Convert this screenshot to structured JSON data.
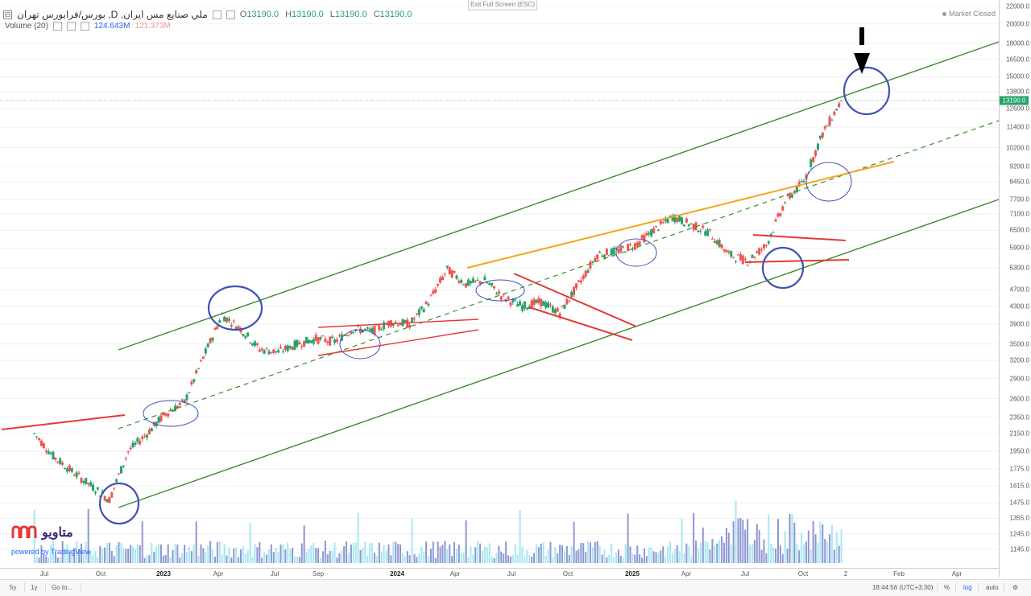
{
  "header": {
    "collapse_symbol": "⊟",
    "symbol_title": "بورس/فرابورس تهران ,D ,ملي صنايع مس ايران",
    "ohlc": [
      {
        "key": "O",
        "value": "13190.0"
      },
      {
        "key": "H",
        "value": "13190.0"
      },
      {
        "key": "L",
        "value": "13190.0"
      },
      {
        "key": "C",
        "value": "13190.0"
      }
    ],
    "volume_label": "Volume (20)",
    "volume_value": "124.643M",
    "volume_ma": "121.373M"
  },
  "exit_fullscreen": "Exit Full Screen (ESC)",
  "market_status": "Market Closed",
  "last_price": "13190.0",
  "branding": {
    "logo_text": "متاویو",
    "powered": "powered by TradingView"
  },
  "toolbar": {
    "ranges": [
      "5y",
      "1y"
    ],
    "goto": "Go to...",
    "clock": "18:44:56 (UTC+3:30)",
    "percent": "%",
    "log": "log",
    "auto": "auto"
  },
  "colors": {
    "up": "#26a269",
    "down": "#ef5350",
    "channel": "#3c8c2c",
    "resistance": "#f5a623",
    "pattern": "#e53935",
    "highlight": "#3f51b5",
    "vol_up": "#5c6bc0",
    "vol_up_light": "#80deea"
  },
  "chart_data": {
    "type": "candlestick",
    "symbol": "ملي صنايع مس ايران",
    "interval": "D",
    "scale": "log",
    "ylim": [
      1100,
      22000
    ],
    "price_ticks": [
      22000,
      20000,
      18000,
      16500,
      15000,
      13800,
      12600,
      11400,
      10200,
      9200,
      8450,
      7700,
      7100,
      6500,
      5900,
      5300,
      4700,
      4300,
      3900,
      3500,
      3200,
      2900,
      2600,
      2350,
      2150,
      1950,
      1775,
      1615,
      1475,
      1355,
      1245,
      1145
    ],
    "time_ticks": [
      "Jul",
      "Oct",
      "2023",
      "Apr",
      "Jul",
      "Sep",
      "2024",
      "Apr",
      "Jul",
      "Oct",
      "2025",
      "Apr",
      "Jul",
      "Oct",
      "2",
      "Feb",
      "Apr"
    ],
    "series": [
      {
        "kind": "price",
        "points": [
          [
            "Jun 2022",
            2150
          ],
          [
            "Jul 2022",
            1900
          ],
          [
            "Aug 2022",
            1750
          ],
          [
            "Sep 2022",
            1620
          ],
          [
            "Oct 2022",
            1500
          ],
          [
            "Nov 2022",
            1950
          ],
          [
            "Dec 2022",
            2150
          ],
          [
            "Jan 2023",
            2400
          ],
          [
            "Feb 2023",
            2550
          ],
          [
            "Mar 2023",
            3250
          ],
          [
            "Apr 2023",
            4100
          ],
          [
            "May 2023",
            3800
          ],
          [
            "Jun 2023",
            3400
          ],
          [
            "Jul 2023",
            3350
          ],
          [
            "Aug 2023",
            3500
          ],
          [
            "Sep 2023",
            3600
          ],
          [
            "Oct 2023",
            3550
          ],
          [
            "Nov 2023",
            3800
          ],
          [
            "Dec 2023",
            3750
          ],
          [
            "Jan 2024",
            3950
          ],
          [
            "Feb 2024",
            3900
          ],
          [
            "Mar 2024",
            4400
          ],
          [
            "Apr 2024",
            5250
          ],
          [
            "May 2024",
            4850
          ],
          [
            "Jun 2024",
            4950
          ],
          [
            "Jul 2024",
            4500
          ],
          [
            "Aug 2024",
            4300
          ],
          [
            "Sep 2024",
            4400
          ],
          [
            "Oct 2024",
            4150
          ],
          [
            "Nov 2024",
            4850
          ],
          [
            "Dec 2024",
            5700
          ],
          [
            "Jan 2025",
            5800
          ],
          [
            "Feb 2025",
            6000
          ],
          [
            "Mar 2025",
            6500
          ],
          [
            "Apr 2025",
            7000
          ],
          [
            "May 2025",
            6700
          ],
          [
            "Jun 2025",
            6400
          ],
          [
            "Jul 2025",
            5700
          ],
          [
            "Aug 2025",
            5500
          ],
          [
            "Sep 2025",
            6000
          ],
          [
            "Oct 2025",
            7600
          ],
          [
            "Nov 2025",
            8500
          ],
          [
            "Dec 2025",
            11000
          ],
          [
            "Jan 2026",
            13190
          ]
        ]
      }
    ],
    "last_close": 13190,
    "annotations": [
      "ascending channel",
      "channel midline",
      "resistance line",
      "symmetrical triangle",
      "falling wedge",
      "horizontal range",
      "circled touch points",
      "arrow at channel top"
    ]
  }
}
